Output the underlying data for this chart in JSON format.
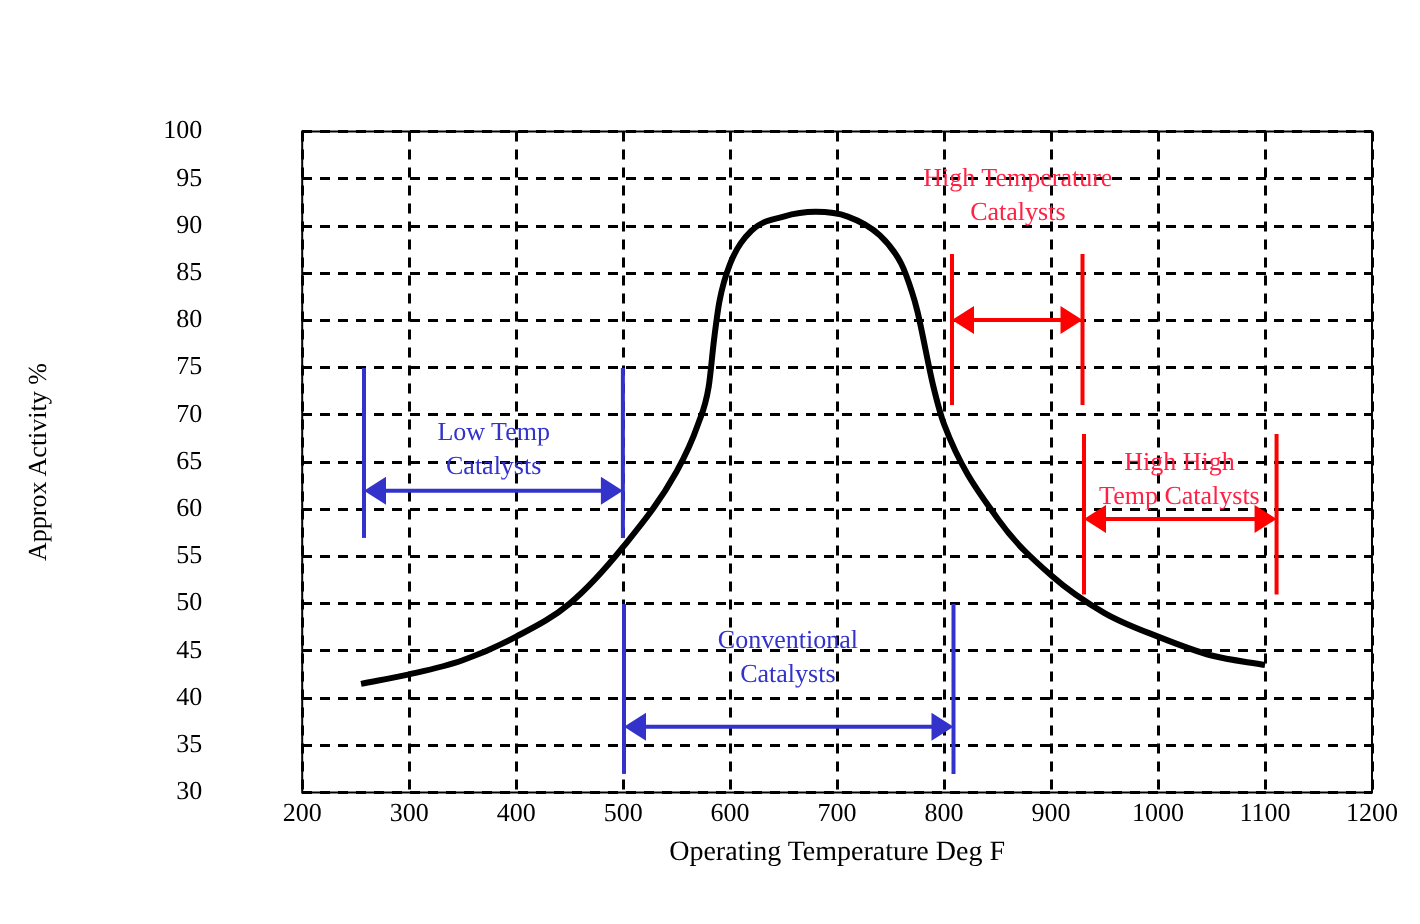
{
  "chart_data": {
    "type": "line",
    "xlabel": "Operating Temperature Deg F",
    "ylabel": "Approx Activity %",
    "x": [
      255,
      300,
      350,
      400,
      450,
      500,
      550,
      570,
      580,
      585,
      590,
      600,
      620,
      650,
      680,
      710,
      740,
      760,
      770,
      775,
      790,
      800,
      850,
      900,
      950,
      1000,
      1050,
      1100
    ],
    "series": [
      {
        "color": "#000000",
        "values": [
          41.5,
          42.5,
          44,
          46.5,
          50,
          56,
          64,
          69,
          73,
          78,
          82,
          86,
          89.5,
          91,
          91.5,
          91,
          89,
          86,
          83,
          81,
          73,
          69,
          59,
          53,
          49,
          46.5,
          44.5,
          43.5
        ]
      }
    ],
    "xlim": [
      200,
      1200
    ],
    "xticks": [
      200,
      300,
      400,
      500,
      600,
      700,
      800,
      900,
      1000,
      1100,
      1200
    ],
    "ylim": [
      30,
      100
    ],
    "yticks": [
      30,
      35,
      40,
      45,
      50,
      55,
      60,
      65,
      70,
      75,
      80,
      85,
      90,
      95,
      100
    ],
    "grid": true,
    "legend": false,
    "marker": "none",
    "line_style": "solid",
    "annotations": [
      "Low Temp\nCatalysts",
      "Conventional\nCatalysts",
      "High Temperature\nCatalysts",
      "High High\nTemp Catalysts"
    ]
  }
}
